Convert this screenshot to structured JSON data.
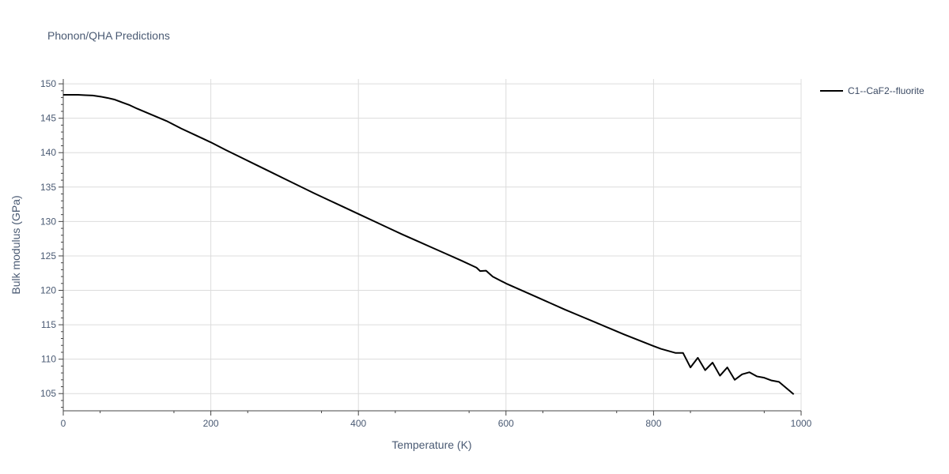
{
  "chart_data": {
    "type": "line",
    "title": "Phonon/QHA Predictions",
    "xlabel": "Temperature (K)",
    "ylabel": "Bulk modulus (GPa)",
    "xlim": [
      0,
      1000
    ],
    "ylim": [
      102.5,
      150.7
    ],
    "x_ticks": [
      0,
      200,
      400,
      600,
      800,
      1000
    ],
    "y_ticks": [
      105,
      110,
      115,
      120,
      125,
      130,
      135,
      140,
      145,
      150
    ],
    "grid": true,
    "legend_position": "top-right",
    "series": [
      {
        "name": "C1--CaF2--fluorite",
        "color": "#000000",
        "x": [
          0,
          10,
          20,
          30,
          40,
          50,
          60,
          70,
          80,
          90,
          100,
          120,
          140,
          160,
          180,
          200,
          220,
          240,
          260,
          280,
          300,
          320,
          340,
          360,
          380,
          400,
          420,
          440,
          460,
          480,
          500,
          520,
          540,
          560,
          565,
          573,
          582,
          600,
          620,
          640,
          660,
          680,
          700,
          720,
          740,
          760,
          780,
          800,
          810,
          820,
          830,
          840,
          850,
          860,
          870,
          880,
          890,
          900,
          910,
          920,
          930,
          940,
          950,
          960,
          970,
          980,
          990
        ],
        "y": [
          148.4,
          148.4,
          148.4,
          148.35,
          148.3,
          148.15,
          147.95,
          147.7,
          147.3,
          146.9,
          146.4,
          145.5,
          144.6,
          143.5,
          142.5,
          141.5,
          140.4,
          139.35,
          138.3,
          137.25,
          136.2,
          135.15,
          134.1,
          133.1,
          132.1,
          131.1,
          130.1,
          129.1,
          128.1,
          127.15,
          126.2,
          125.25,
          124.3,
          123.3,
          122.8,
          122.85,
          122.0,
          121.0,
          120.05,
          119.1,
          118.15,
          117.2,
          116.3,
          115.4,
          114.5,
          113.6,
          112.75,
          111.9,
          111.5,
          111.2,
          110.9,
          110.9,
          108.8,
          110.2,
          108.4,
          109.5,
          107.6,
          108.8,
          107.0,
          107.8,
          108.1,
          107.5,
          107.3,
          106.9,
          106.7,
          105.8,
          104.9
        ]
      }
    ]
  }
}
